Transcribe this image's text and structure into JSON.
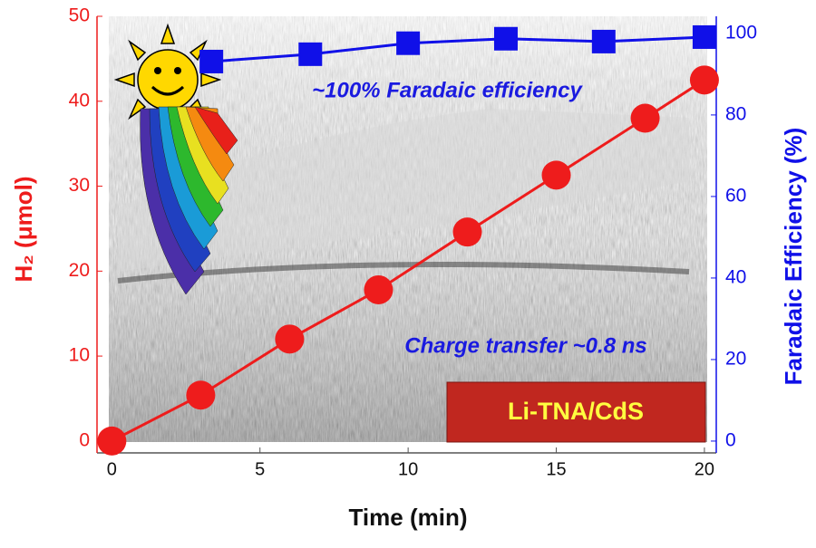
{
  "chart_data": {
    "type": "line",
    "x_label": "Time (min)",
    "y_label": "H₂ (μmol)",
    "y2_label": "Faradaic Efficiency (%)",
    "annotations": [
      "~100% Faradaic efficiency",
      "Charge transfer ~0.8 ns",
      "Li-TNA/CdS"
    ],
    "xlim": [
      -0.5,
      20.4
    ],
    "xticks": [
      0,
      5,
      10,
      15,
      20
    ],
    "ylim": [
      -1.4,
      50
    ],
    "yticks": [
      0,
      10,
      20,
      30,
      40,
      50
    ],
    "y2lim": [
      -2.9,
      104.2
    ],
    "y2ticks": [
      0,
      20,
      40,
      60,
      80,
      100
    ],
    "series": [
      {
        "color": "#ee1c1c",
        "marker": "circle",
        "axis": "y",
        "x": [
          0,
          3,
          6,
          9,
          12,
          15,
          18,
          20
        ],
        "values": [
          0,
          5.4,
          12.0,
          17.8,
          24.6,
          31.3,
          38.0,
          42.5
        ]
      },
      {
        "color": "#1010e8",
        "marker": "square",
        "axis": "y2",
        "x": [
          3.36,
          6.7,
          10,
          13.3,
          16.6,
          20
        ],
        "values": [
          93.1,
          94.9,
          97.6,
          98.7,
          98.0,
          99.1
        ]
      }
    ]
  }
}
